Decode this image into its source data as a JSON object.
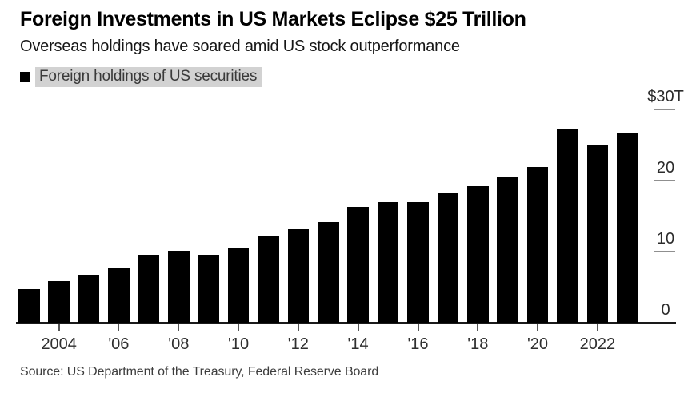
{
  "header": {
    "title": "Foreign Investments in US Markets Eclipse $25 Trillion",
    "subtitle": "Overseas holdings have soared amid US stock outperformance"
  },
  "legend": {
    "label": "Foreign holdings of US securities",
    "swatch_color": "#000000",
    "highlight_color": "#d2d2d2"
  },
  "chart_data": {
    "type": "bar",
    "title": "Foreign Investments in US Markets Eclipse $25 Trillion",
    "series_name": "Foreign holdings of US securities",
    "unit": "trillions of US dollars",
    "categories": [
      2003,
      2004,
      2005,
      2006,
      2007,
      2008,
      2009,
      2010,
      2011,
      2012,
      2013,
      2014,
      2015,
      2016,
      2017,
      2018,
      2019,
      2020,
      2021,
      2022,
      2023
    ],
    "values": [
      4.7,
      5.8,
      6.7,
      7.6,
      9.6,
      10.1,
      9.5,
      10.5,
      12.3,
      13.2,
      14.2,
      16.3,
      17.0,
      17.0,
      18.2,
      19.2,
      20.4,
      21.9,
      27.2,
      24.9,
      26.7
    ],
    "bar_color": "#000000",
    "ylim": [
      0,
      30
    ],
    "grid": false,
    "axis_side": "right",
    "legend_position": "top-left",
    "y_ticks": [
      {
        "value": 30,
        "label": "$30T"
      },
      {
        "value": 20,
        "label": "20"
      },
      {
        "value": 10,
        "label": "10"
      },
      {
        "value": 0,
        "label": "0"
      }
    ],
    "x_tick_labels": [
      {
        "year": 2004,
        "label": "2004"
      },
      {
        "year": 2006,
        "label": "'06"
      },
      {
        "year": 2008,
        "label": "'08"
      },
      {
        "year": 2010,
        "label": "'10"
      },
      {
        "year": 2012,
        "label": "'12"
      },
      {
        "year": 2014,
        "label": "'14"
      },
      {
        "year": 2016,
        "label": "'16"
      },
      {
        "year": 2018,
        "label": "'18"
      },
      {
        "year": 2020,
        "label": "'20"
      },
      {
        "year": 2022,
        "label": "2022"
      }
    ]
  },
  "footer": {
    "source": "Source: US Department of the Treasury, Federal Reserve Board"
  }
}
